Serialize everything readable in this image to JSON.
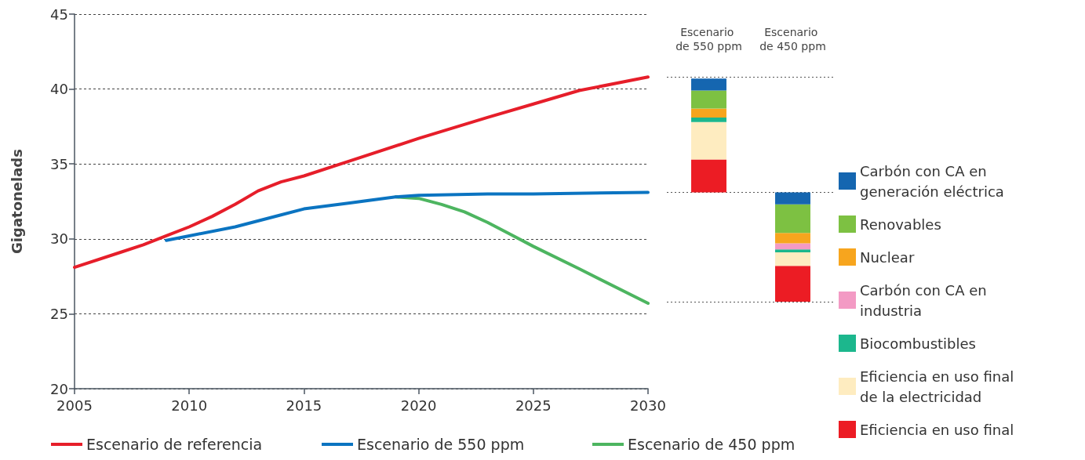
{
  "chart_data": [
    {
      "type": "line",
      "ylabel": "Gigatonelads",
      "xlim": [
        2005,
        2030
      ],
      "xticks": [
        2005,
        2010,
        2015,
        2020,
        2025,
        2030
      ],
      "ylim": [
        20,
        45
      ],
      "yticks": [
        20,
        25,
        30,
        35,
        40,
        45
      ],
      "grid": "y",
      "legend": "bottom",
      "series": [
        {
          "name": "Escenario de referencia",
          "color": "#e61e2a",
          "x": [
            2005,
            2007,
            2008,
            2009,
            2010,
            2011,
            2012,
            2013,
            2014,
            2015,
            2017,
            2020,
            2023,
            2025,
            2027,
            2030
          ],
          "values": [
            28.1,
            29.1,
            29.6,
            30.2,
            30.8,
            31.5,
            32.3,
            33.2,
            33.8,
            34.2,
            35.2,
            36.7,
            38.1,
            39.0,
            39.9,
            40.8
          ]
        },
        {
          "name": "Escenario de 550 ppm",
          "color": "#0b74c1",
          "x": [
            2009,
            2010,
            2012,
            2014,
            2015,
            2017,
            2019,
            2020,
            2023,
            2025,
            2030
          ],
          "values": [
            29.9,
            30.2,
            30.8,
            31.6,
            32.0,
            32.4,
            32.8,
            32.9,
            33.0,
            33.0,
            33.1
          ]
        },
        {
          "name": "Escenario de 450 ppm",
          "color": "#4db560",
          "x": [
            2019,
            2020,
            2021,
            2022,
            2023,
            2024,
            2025,
            2027,
            2030
          ],
          "values": [
            32.8,
            32.7,
            32.3,
            31.8,
            31.1,
            30.3,
            29.5,
            28.0,
            25.7
          ]
        }
      ]
    },
    {
      "type": "bar",
      "categories": [
        "Escenario de 550 ppm",
        "Escenario de 450 ppm"
      ],
      "ylim": [
        20,
        45
      ],
      "yticks": [
        20,
        25,
        30,
        35,
        40,
        45
      ],
      "tick_labels": "x",
      "legend": "right",
      "ref_lines": [
        {
          "axis": "y",
          "value": 40.8,
          "color": "#555555",
          "line_style": "dotted"
        },
        {
          "axis": "y",
          "value": 33.1,
          "color": "#555555",
          "line_style": "dotted"
        },
        {
          "axis": "y",
          "value": 25.8,
          "color": "#555555",
          "line_style": "dotted"
        }
      ],
      "series": [
        {
          "name": "Eficiencia en uso final",
          "color": "#ec1c24",
          "base": [
            33.1,
            25.8
          ],
          "values": [
            2.2,
            2.4
          ]
        },
        {
          "name": "Eficiencia en uso final de la electricidad",
          "color": "#feecc0",
          "base": [
            35.3,
            28.2
          ],
          "values": [
            2.5,
            0.9
          ]
        },
        {
          "name": "Biocombustibles",
          "color": "#1cb78d",
          "base": [
            37.8,
            29.1
          ],
          "values": [
            0.3,
            0.2
          ]
        },
        {
          "name": "Carbón con CA en industria",
          "color": "#f39ac4",
          "base": [
            null,
            29.3
          ],
          "values": [
            null,
            0.4
          ]
        },
        {
          "name": "Nuclear",
          "color": "#f7a51e",
          "base": [
            38.1,
            29.7
          ],
          "values": [
            0.6,
            0.7
          ]
        },
        {
          "name": "Renovables",
          "color": "#7dc142",
          "base": [
            38.7,
            30.4
          ],
          "values": [
            1.2,
            1.9
          ]
        },
        {
          "name": "Carbón con CA en generación eléctrica",
          "color": "#1566b0",
          "base": [
            39.9,
            32.3
          ],
          "values": [
            0.8,
            0.8
          ]
        }
      ]
    }
  ]
}
